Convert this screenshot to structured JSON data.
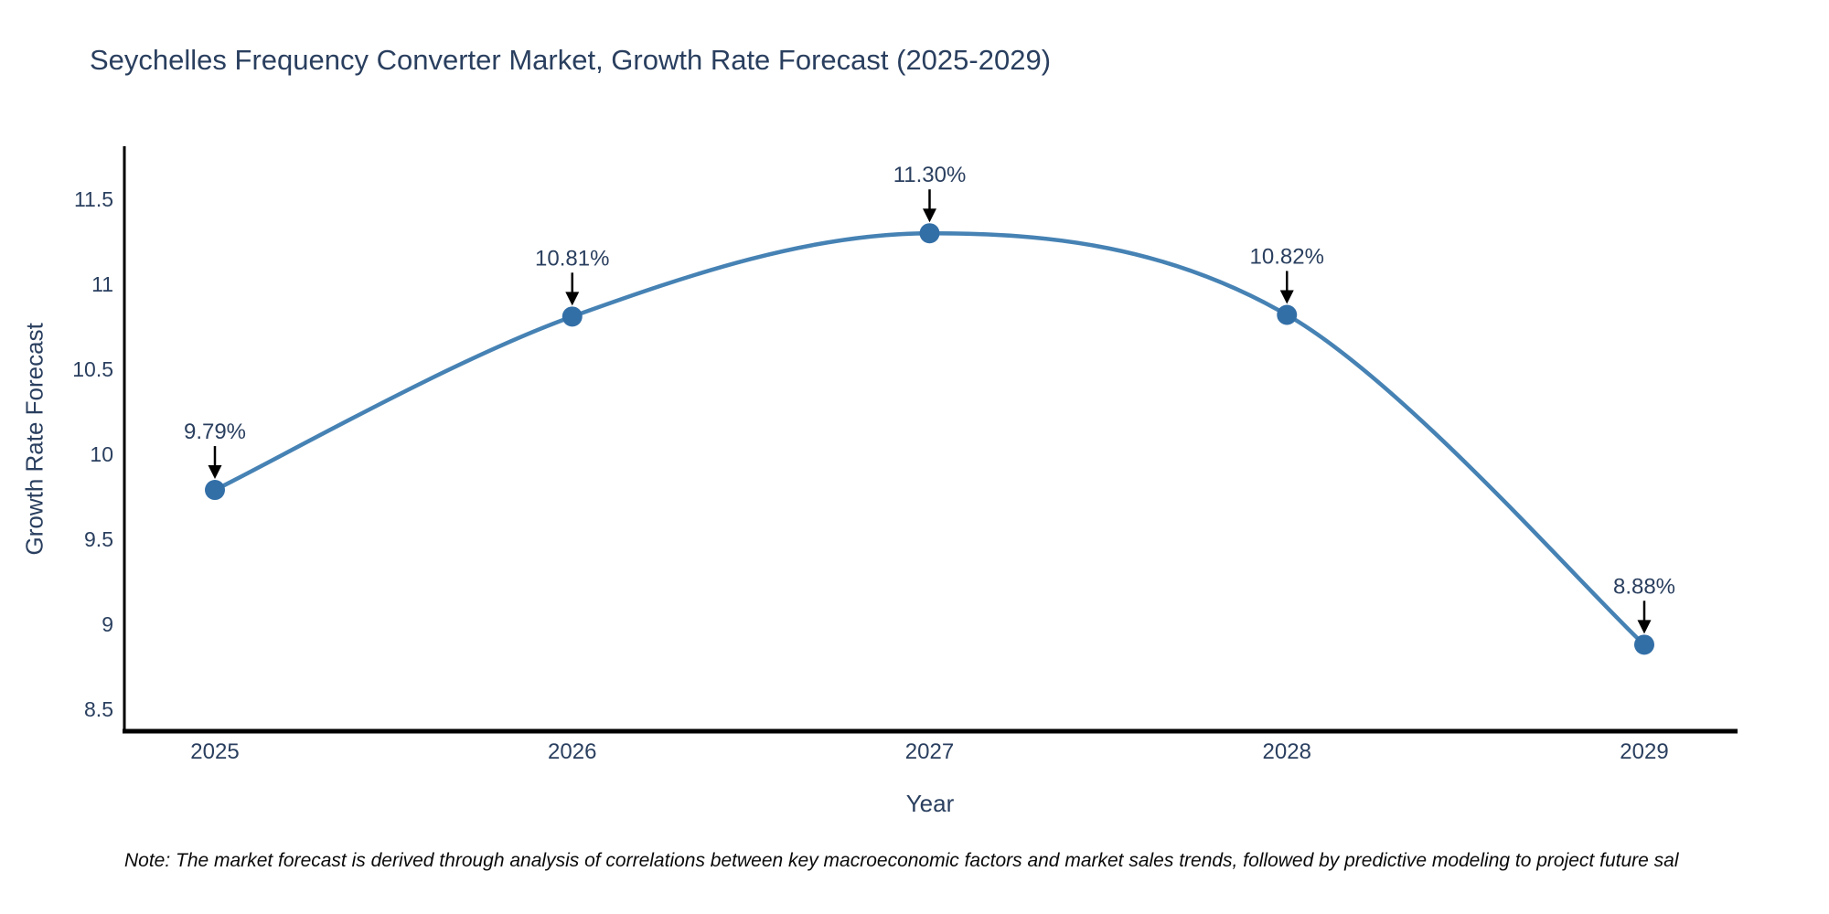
{
  "colors": {
    "line": "#4682b4",
    "marker": "#336fa7",
    "axis": "#000000",
    "arrow": "#000000",
    "text": "#2a3f5f",
    "note_text": "#0a0a0a",
    "background": "#ffffff"
  },
  "chart_data": {
    "type": "line",
    "line_shape": "spline",
    "title": "Seychelles Frequency Converter Market, Growth Rate Forecast (2025-2029)",
    "xlabel": "Year",
    "ylabel": "Growth Rate Forecast",
    "categories": [
      "2025",
      "2026",
      "2027",
      "2028",
      "2029"
    ],
    "values": [
      9.79,
      10.81,
      11.3,
      10.82,
      8.88
    ],
    "point_labels": [
      "9.79%",
      "10.81%",
      "11.30%",
      "10.82%",
      "8.88%"
    ],
    "yticks": [
      8.5,
      9,
      9.5,
      10,
      10.5,
      11,
      11.5
    ],
    "ylim": [
      8.37,
      11.81
    ],
    "grid": false,
    "legend_position": "none",
    "annotation_style": "label-with-down-arrow",
    "note": "Note: The market forecast is derived through analysis of correlations between key macroeconomic factors and market sales trends, followed by predictive modeling to project future sal"
  }
}
